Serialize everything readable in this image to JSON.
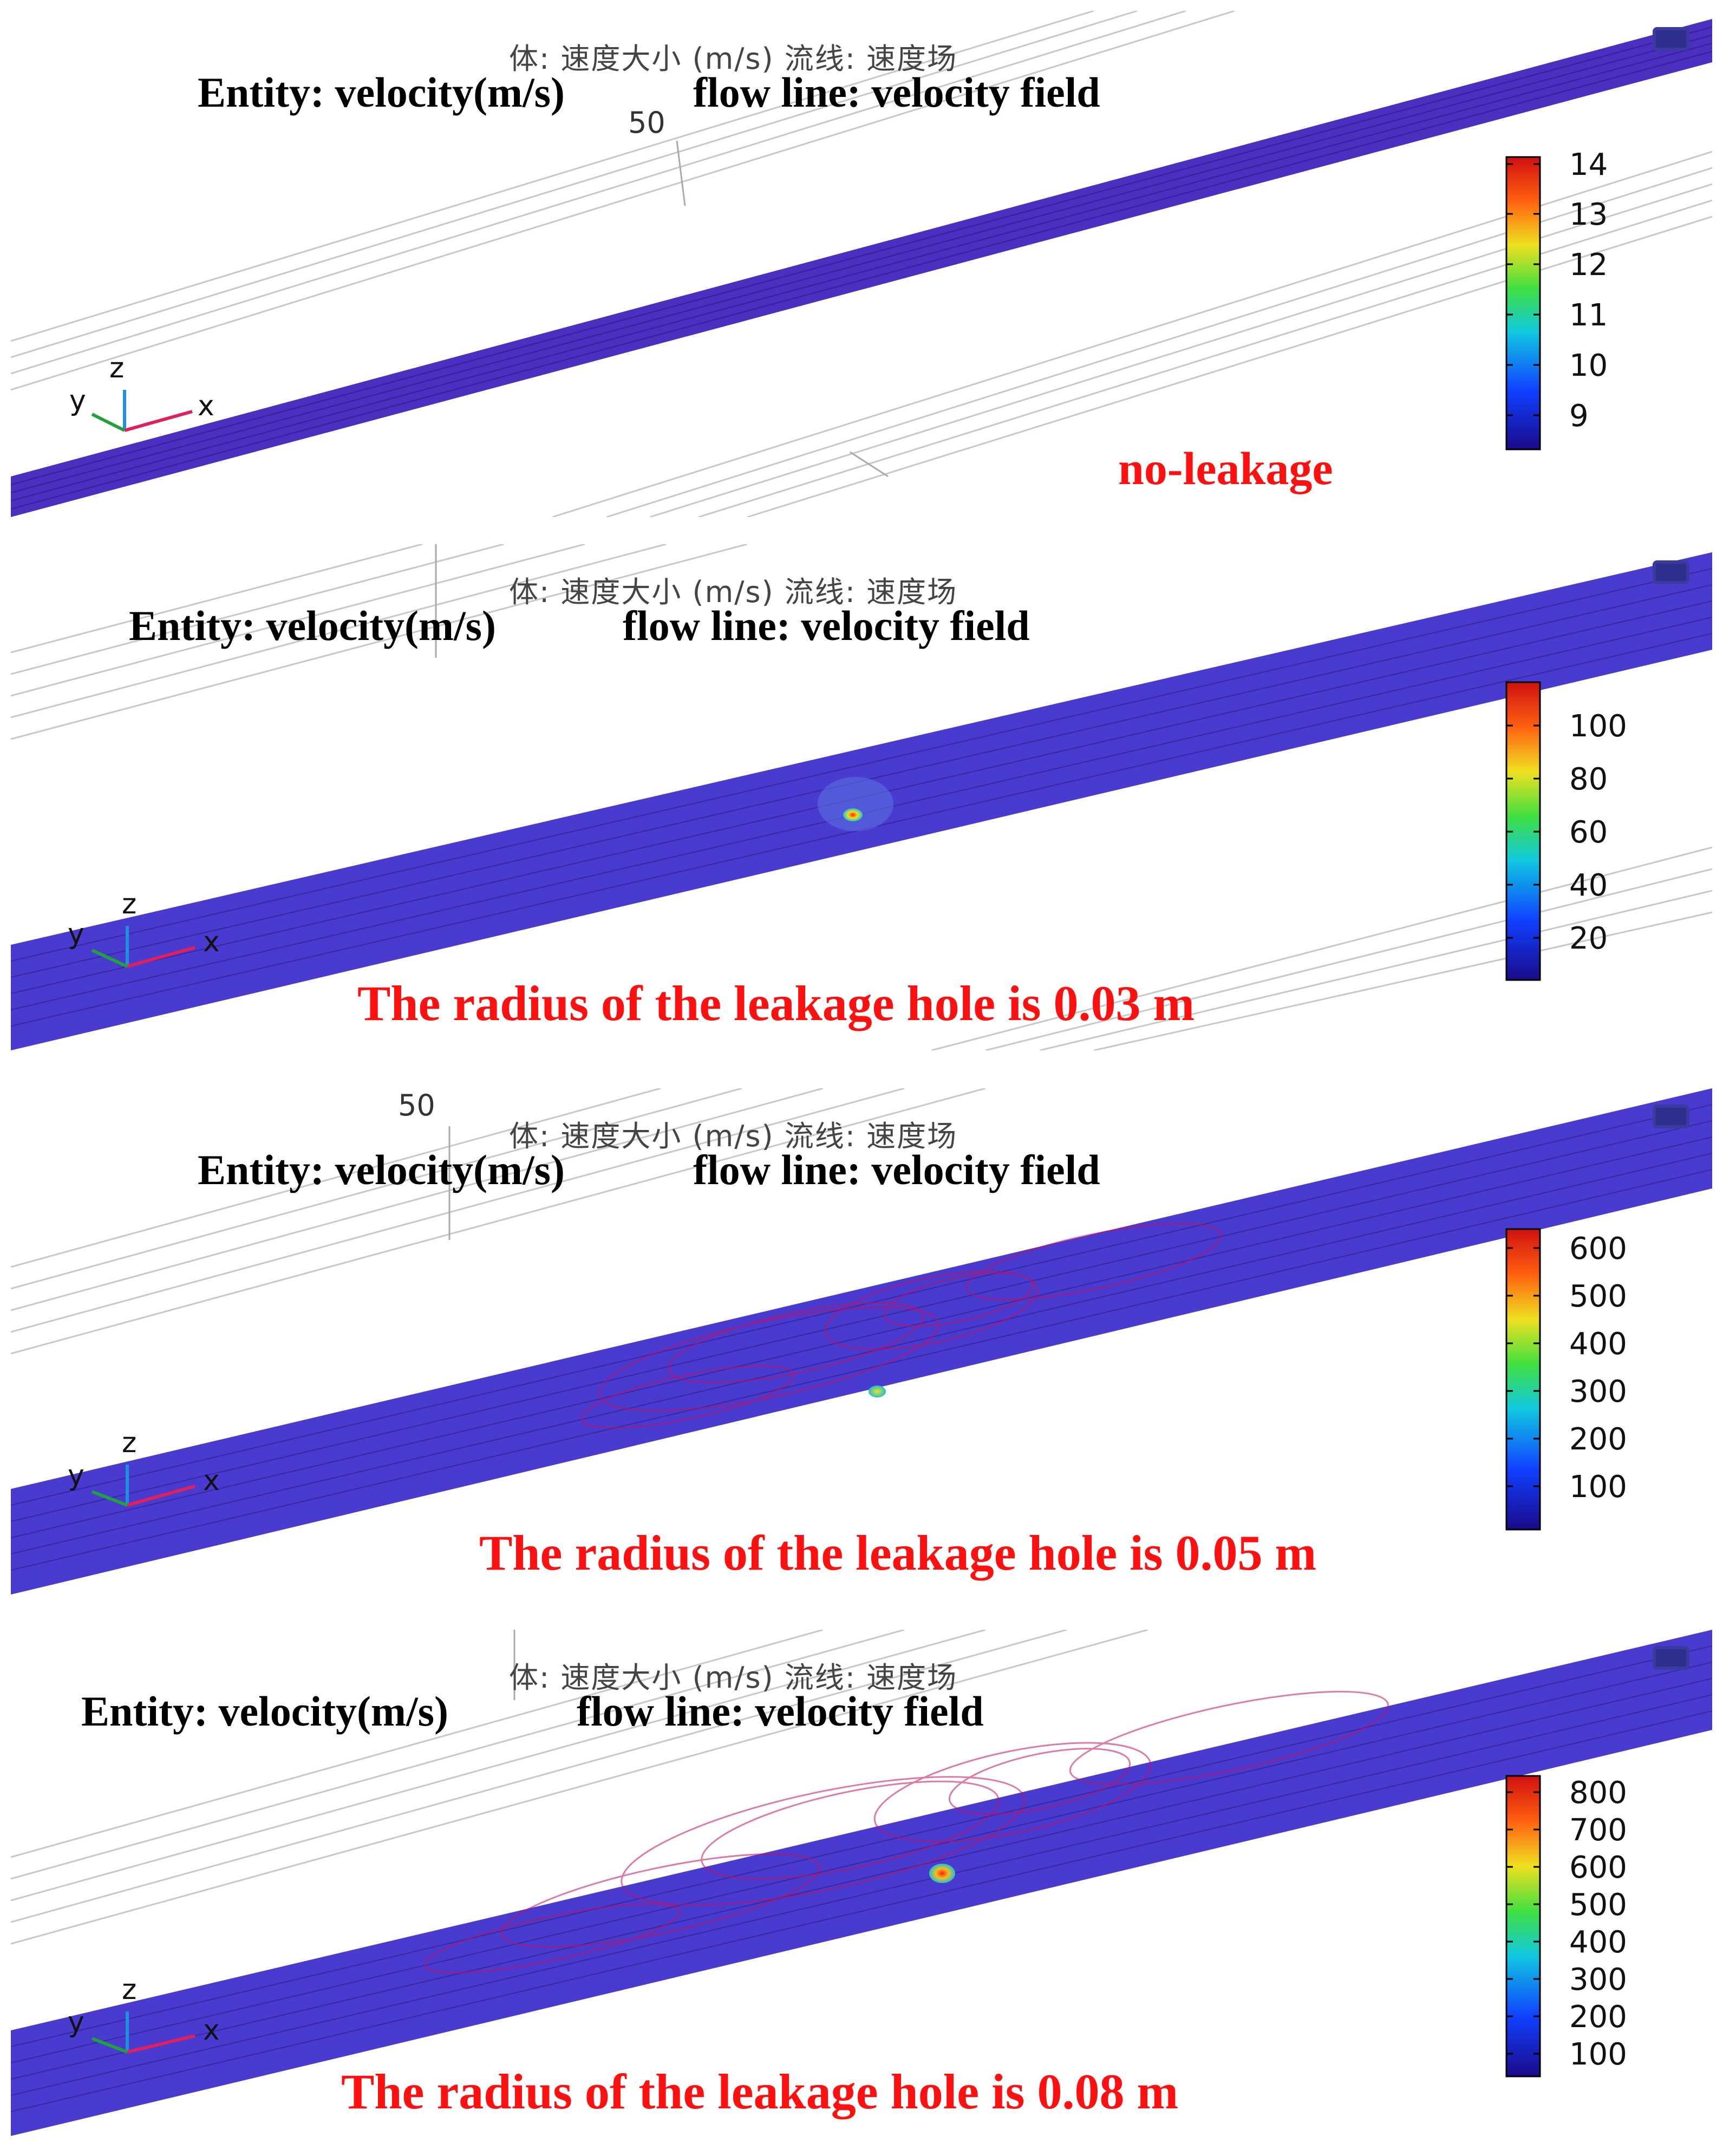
{
  "panels": [
    {
      "id": "no-leakage",
      "title_zh": "体: 速度大小 (m/s)  流线: 速度场",
      "entity_label": "Entity: velocity(m/s)",
      "flowline_label": "flow line: velocity field",
      "axis_tick": "50",
      "caption": "no-leakage",
      "colorbar_ticks": [
        "14",
        "13",
        "12",
        "11",
        "10",
        "9"
      ],
      "axes": {
        "x": "x",
        "y": "y",
        "z": "z"
      }
    },
    {
      "id": "hole-0.03",
      "title_zh": "体: 速度大小 (m/s)  流线: 速度场",
      "entity_label": "Entity: velocity(m/s)",
      "flowline_label": "flow line: velocity field",
      "axis_tick": "",
      "caption": "The radius of the leakage hole is 0.03 m",
      "colorbar_ticks": [
        "100",
        "80",
        "60",
        "40",
        "20"
      ],
      "axes": {
        "x": "x",
        "y": "y",
        "z": "z"
      }
    },
    {
      "id": "hole-0.05",
      "title_zh": "体: 速度大小 (m/s)  流线: 速度场",
      "entity_label": "Entity: velocity(m/s)",
      "flowline_label": "flow line: velocity field",
      "axis_tick": "50",
      "caption": "The radius of the leakage hole is 0.05 m",
      "colorbar_ticks": [
        "600",
        "500",
        "400",
        "300",
        "200",
        "100"
      ],
      "axes": {
        "x": "x",
        "y": "y",
        "z": "z"
      }
    },
    {
      "id": "hole-0.08",
      "title_zh": "体: 速度大小 (m/s)  流线: 速度场",
      "entity_label": "Entity: velocity(m/s)",
      "flowline_label": "flow line: velocity field",
      "axis_tick": "",
      "caption": "The radius of the leakage hole is 0.08 m",
      "colorbar_ticks": [
        "800",
        "700",
        "600",
        "500",
        "400",
        "300",
        "200",
        "100"
      ],
      "axes": {
        "x": "x",
        "y": "y",
        "z": "z"
      }
    }
  ],
  "colors": {
    "pipe": "#4a2fc0",
    "pipe_dark": "#2a1a8a",
    "streamline": "#c01060",
    "caption": "#ff1010"
  }
}
